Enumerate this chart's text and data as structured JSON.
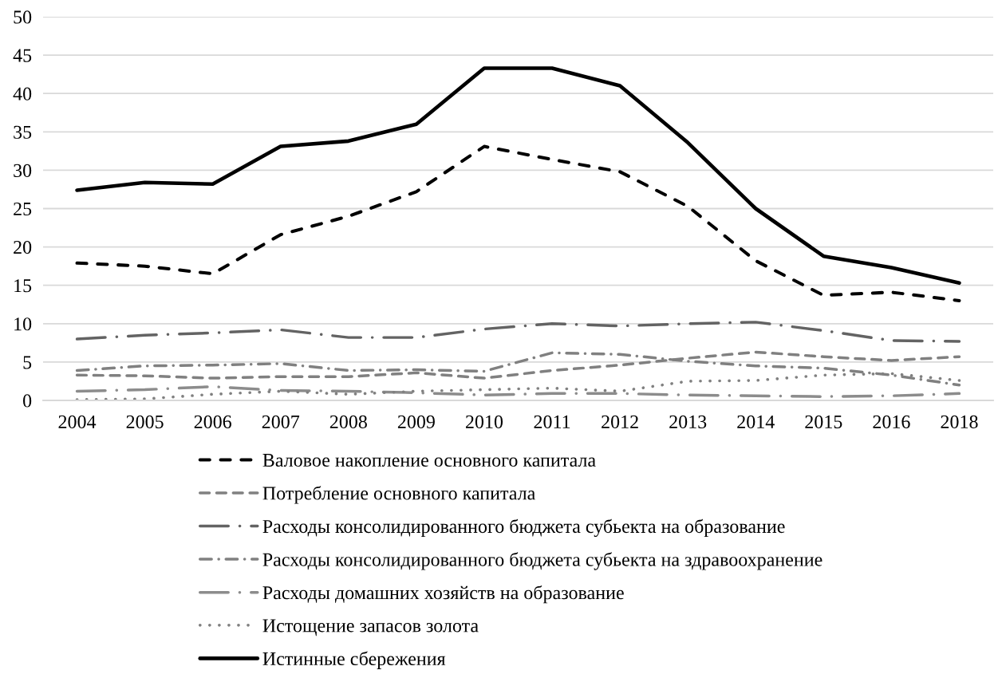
{
  "chart_data": {
    "type": "line",
    "categories": [
      "2004",
      "2005",
      "2006",
      "2007",
      "2008",
      "2009",
      "2010",
      "2011",
      "2012",
      "2013",
      "2014",
      "2015",
      "2016",
      "2018"
    ],
    "ylim": [
      0,
      50
    ],
    "yticks": [
      0,
      5,
      10,
      15,
      20,
      25,
      30,
      35,
      40,
      45,
      50
    ],
    "grid": "y",
    "legend": "bottom",
    "series": [
      {
        "name": "Валовое накопление основного капитала",
        "color": "#000000",
        "line_style": "dashed",
        "values": [
          17.9,
          17.5,
          16.5,
          21.6,
          24.0,
          27.2,
          33.1,
          31.4,
          29.8,
          25.3,
          18.2,
          13.7,
          14.1,
          13.0
        ]
      },
      {
        "name": "Потребление основного капитала",
        "color": "#808080",
        "line_style": "dashed",
        "values": [
          3.3,
          3.2,
          2.9,
          3.1,
          3.1,
          3.6,
          2.9,
          3.9,
          4.6,
          5.5,
          6.3,
          5.7,
          5.2,
          5.7
        ]
      },
      {
        "name": "Расходы консолидированного бюджета субьекта на образование",
        "color": "#636363",
        "line_style": "longdashdot",
        "values": [
          8.0,
          8.5,
          8.8,
          9.2,
          8.2,
          8.2,
          9.3,
          10.0,
          9.7,
          10.0,
          10.2,
          9.1,
          7.8,
          7.7
        ]
      },
      {
        "name": "Расходы консолидированного бюджета субьекта на здравоохранение",
        "color": "#808080",
        "line_style": "dashdot",
        "values": [
          3.9,
          4.5,
          4.6,
          4.8,
          3.9,
          4.0,
          3.8,
          6.2,
          6.0,
          5.1,
          4.5,
          4.2,
          3.3,
          2.0
        ]
      },
      {
        "name": "Расходы домашних хозяйств на образование",
        "color": "#8c8c8c",
        "line_style": "longdashdot",
        "values": [
          1.2,
          1.4,
          1.8,
          1.3,
          1.2,
          1.0,
          0.7,
          0.9,
          0.9,
          0.7,
          0.6,
          0.5,
          0.6,
          0.9
        ]
      },
      {
        "name": "Истощение запасов золота",
        "color": "#808080",
        "line_style": "dotted",
        "values": [
          0.1,
          0.2,
          0.8,
          1.2,
          0.8,
          1.2,
          1.4,
          1.6,
          1.2,
          2.5,
          2.6,
          3.3,
          3.5,
          2.6
        ]
      },
      {
        "name": "Истинные сбережения",
        "color": "#000000",
        "line_style": "solid",
        "values": [
          27.4,
          28.4,
          28.2,
          33.1,
          33.8,
          36.0,
          43.3,
          43.3,
          41.0,
          33.6,
          25.0,
          18.8,
          17.3,
          15.3
        ]
      }
    ]
  }
}
